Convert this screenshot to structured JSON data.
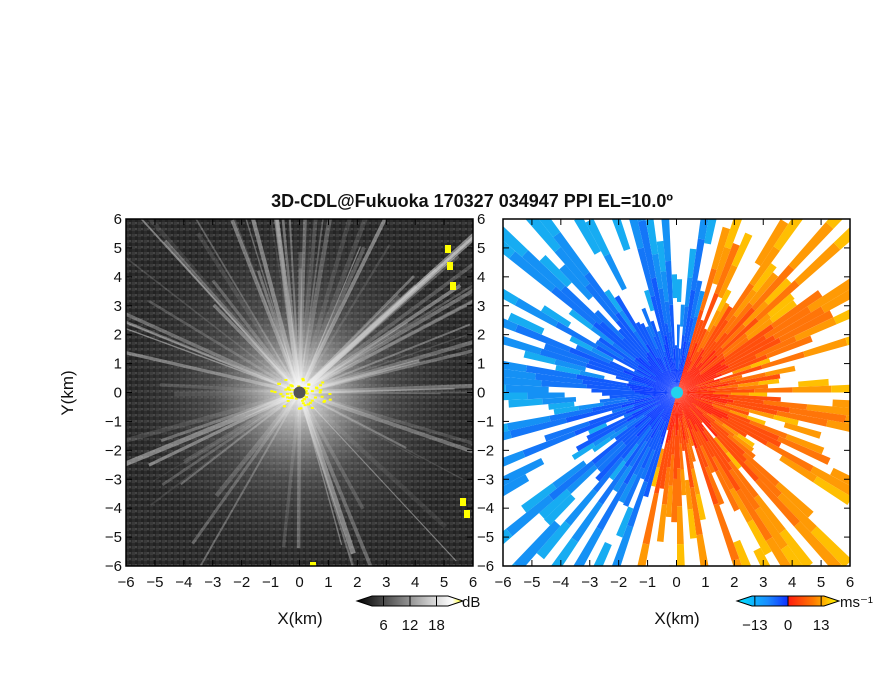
{
  "title": "3D-CDL@Fukuoka 170327 034947 PPI EL=10.0º",
  "chart_data": [
    {
      "type": "heatmap",
      "name": "reflectivity-ppi",
      "xlabel": "X(km)",
      "ylabel": "Y(km)",
      "xlim": [
        -6,
        6
      ],
      "ylim": [
        -6,
        6
      ],
      "xticks": [
        "−6",
        "−5",
        "−4",
        "−3",
        "−2",
        "−1",
        "0",
        "1",
        "2",
        "3",
        "4",
        "5",
        "6"
      ],
      "yticks": [
        "−6",
        "−5",
        "−4",
        "−3",
        "−2",
        "−1",
        "0",
        "1",
        "2",
        "3",
        "4",
        "5",
        "6"
      ],
      "colorbar": {
        "unit": "dB",
        "ticks": [
          "6",
          "12",
          "18"
        ],
        "range": [
          0,
          24
        ],
        "colormap": "gray-to-yellow"
      },
      "background_color": "#303030",
      "center_marker_color": "#555555"
    },
    {
      "type": "heatmap",
      "name": "doppler-velocity-ppi",
      "xlabel": "X(km)",
      "ylabel": "",
      "xlim": [
        -6,
        6
      ],
      "ylim": [
        -6,
        6
      ],
      "xticks": [
        "−6",
        "−5",
        "−4",
        "−3",
        "−2",
        "−1",
        "0",
        "1",
        "2",
        "3",
        "4",
        "5",
        "6"
      ],
      "yticks": [
        "−6",
        "−5",
        "−4",
        "−3",
        "−2",
        "−1",
        "0",
        "1",
        "2",
        "3",
        "4",
        "5",
        "6"
      ],
      "colorbar": {
        "unit": "ms⁻¹",
        "ticks": [
          "−13",
          "0",
          "13"
        ],
        "range": [
          -20,
          20
        ],
        "colormap": "cyan-blue-red-yellow"
      },
      "center_marker_color": "#22d3ee"
    }
  ],
  "colors": {
    "approach": "#1040ff",
    "recede": "#ff2a10",
    "far_approach": "#18b8f0",
    "far_recede": "#ffd000",
    "echo_yellow": "#ffff00"
  }
}
